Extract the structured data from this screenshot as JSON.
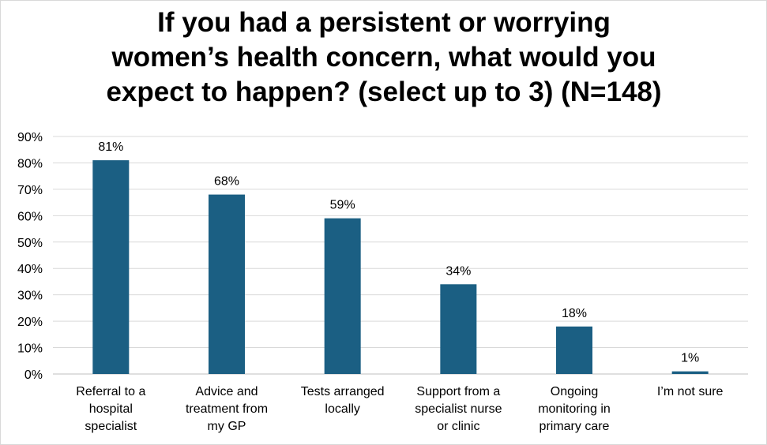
{
  "chart_data": {
    "type": "bar",
    "title_lines": [
      "If you had a persistent or worrying",
      "women’s health concern, what would you",
      "expect to happen? (select up to 3) (N=148)"
    ],
    "categories": [
      [
        "Referral to a",
        "hospital",
        "specialist"
      ],
      [
        "Advice and",
        "treatment from",
        "my GP"
      ],
      [
        "Tests arranged",
        "locally"
      ],
      [
        "Support from a",
        "specialist nurse",
        "or clinic"
      ],
      [
        "Ongoing",
        "monitoring in",
        "primary care"
      ],
      [
        "I’m not sure"
      ]
    ],
    "values": [
      81,
      68,
      59,
      34,
      18,
      1
    ],
    "data_labels": [
      "81%",
      "68%",
      "59%",
      "34%",
      "18%",
      "1%"
    ],
    "y_ticks": [
      "0%",
      "10%",
      "20%",
      "30%",
      "40%",
      "50%",
      "60%",
      "70%",
      "80%",
      "90%"
    ],
    "ylim": [
      0,
      90
    ],
    "xlabel": "",
    "ylabel": "",
    "grid": true,
    "legend": "none",
    "bar_color": "#1b5f83",
    "grid_color": "#d9d9d9"
  }
}
